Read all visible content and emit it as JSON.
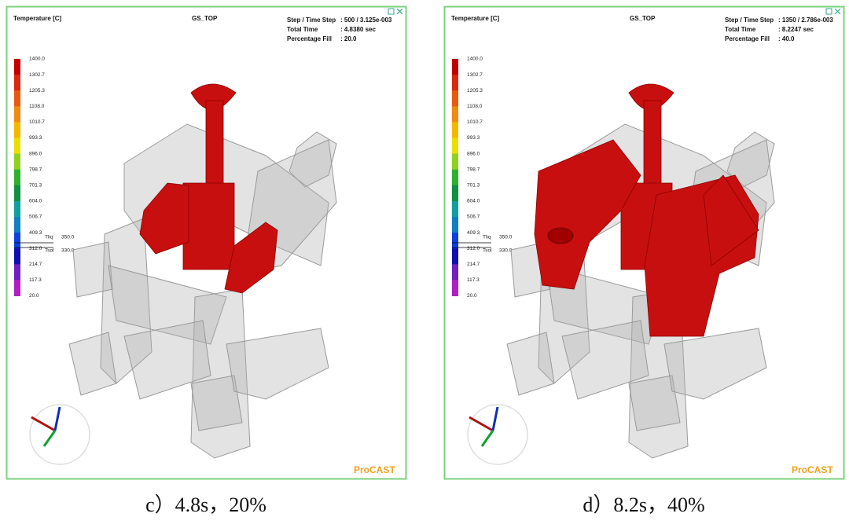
{
  "panels": [
    {
      "header": {
        "quantity": "Temperature [C]",
        "view": "GS_TOP",
        "step_label": "Step / Time Step",
        "step_value": ": 500 / 3.125e-003",
        "time_label": "Total  Time",
        "time_value": ": 4.8380  sec",
        "fill_label": "Percentage Fill",
        "fill_value": ": 20.0"
      },
      "legend": [
        "1400.0",
        "1302.7",
        "1205.3",
        "1108.0",
        "1010.7",
        "993.3",
        "896.0",
        "798.7",
        "701.3",
        "604.0",
        "506.7",
        "409.3",
        "312.0",
        "214.7",
        "117.3",
        "20.0"
      ],
      "tliq_label": "Tliq",
      "tliq_value": "350.0",
      "tsol_label": "Tsol",
      "tsol_value": "330.0",
      "logo": "ProCAST",
      "caption": "c）4.8s，20%"
    },
    {
      "header": {
        "quantity": "Temperature [C]",
        "view": "GS_TOP",
        "step_label": "Step / Time Step",
        "step_value": ": 1350 / 2.786e-003",
        "time_label": "Total  Time",
        "time_value": ": 8.2247  sec",
        "fill_label": "Percentage Fill",
        "fill_value": ": 40.0"
      },
      "legend": [
        "1400.0",
        "1302.7",
        "1205.3",
        "1108.0",
        "1010.7",
        "993.3",
        "896.0",
        "798.7",
        "701.3",
        "604.0",
        "506.7",
        "409.3",
        "312.0",
        "214.7",
        "117.3",
        "20.0"
      ],
      "tliq_label": "Tliq",
      "tliq_value": "350.0",
      "tsol_label": "Tsol",
      "tsol_value": "330.0",
      "logo": "ProCAST",
      "caption": "d）8.2s，40%"
    }
  ]
}
